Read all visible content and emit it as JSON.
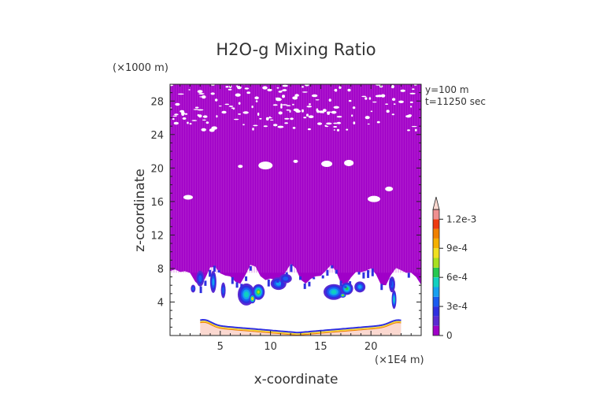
{
  "chart_data": {
    "type": "heatmap",
    "title": "H2O-g Mixing Ratio",
    "xlabel": "x-coordinate",
    "ylabel": "z-coordinate",
    "x_unit_label": "(×1E4 m)",
    "y_unit_label": "(×1000 m)",
    "annotations": [
      "y=100 m",
      "t=11250 sec"
    ],
    "xlim": [
      0,
      25
    ],
    "ylim": [
      0,
      30
    ],
    "x_ticks": [
      5,
      10,
      15,
      20
    ],
    "y_ticks": [
      4,
      8,
      12,
      16,
      20,
      24,
      28
    ],
    "colorbar": {
      "tick_labels": [
        "1.2e-3",
        "9e-4",
        "6e-4",
        "3e-4",
        "0"
      ],
      "tick_values": [
        0.0012,
        0.0009,
        0.0006,
        0.0003,
        0
      ],
      "levels": [
        0,
        0.0001,
        0.0002,
        0.0003,
        0.0004,
        0.0005,
        0.0006,
        0.0007,
        0.0008,
        0.0009,
        0.001,
        0.0011,
        0.0012,
        0.0013
      ],
      "colors": [
        "#a000c8",
        "#5a2ad2",
        "#2f2fe0",
        "#1a5cf0",
        "#16a0f0",
        "#10d0c0",
        "#26c850",
        "#a8e020",
        "#f0e020",
        "#f5b000",
        "#f08000",
        "#ee3a10",
        "#f09090",
        "#fbd8d0"
      ],
      "extend": "max"
    },
    "regions": [
      {
        "name": "upper-moist-layer",
        "x_range": [
          0,
          25
        ],
        "z_range": [
          7,
          30
        ],
        "value": "0 to 1e-4"
      },
      {
        "name": "surface-layer",
        "x_range": [
          3,
          23
        ],
        "z_range": [
          0,
          1.5
        ],
        "value": "up to 1.3e-3"
      }
    ]
  },
  "colors": {
    "background": "#ffffff",
    "low_value_purple": "#a000c8",
    "text": "#333333"
  }
}
